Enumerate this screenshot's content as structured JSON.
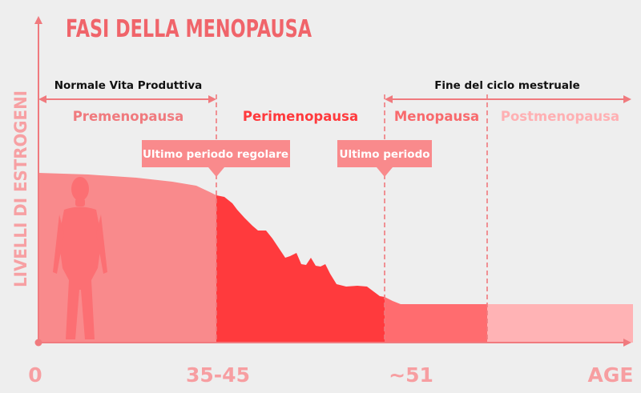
{
  "title": "FASI DELLA MENOPAUSA",
  "y_axis_label": "LIVELLI DI ESTROGENI",
  "spans": {
    "left": "Normale Vita Produttiva",
    "right": "Fine del ciclo mestruale"
  },
  "phases": {
    "premenopausa": "Premenopausa",
    "perimenopausa": "Perimenopausa",
    "menopausa": "Menopausa",
    "postmenopausa": "Postmenopausa"
  },
  "callouts": {
    "last_regular": "Ultimo periodo regolare",
    "last_period": "Ultimo periodo"
  },
  "x_ticks": {
    "zero": "0",
    "mid": "35-45",
    "late": "~51",
    "end": "AGE"
  },
  "colors": {
    "axis": "#f07a7e",
    "title": "#f0646a",
    "premenopausa_fill": "#f98a8c",
    "perimenopausa_fill": "#ff3a3d",
    "menopausa_fill": "#ff6c6f",
    "postmenopausa_fill": "#ffb3b5",
    "silhouette": "#fc6f73"
  }
}
